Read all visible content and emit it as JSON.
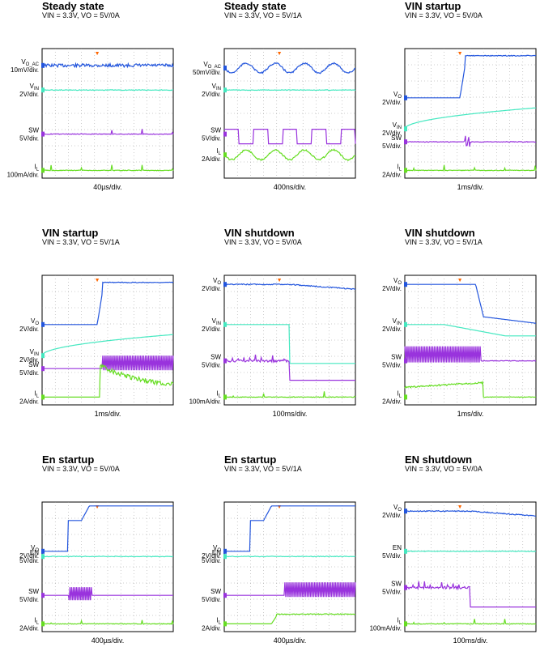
{
  "colors": {
    "vo": "#2255dd",
    "vin": "#44e8c0",
    "en": "#44e8c0",
    "sw": "#9933dd",
    "il": "#66dd22",
    "marker": "#ff6600",
    "grid": "#999999"
  },
  "chart_data": [
    {
      "type": "line",
      "title": "Steady state",
      "conditions": "VIN = 3.3V, VO = 5V/0A",
      "timebase": "40µs/div.",
      "channels": [
        {
          "name": "VO_AC",
          "label": "V",
          "sub": "O_AC",
          "scale": "10mV/div.",
          "color": "vo",
          "shape": "flat_noise",
          "level": 0.13
        },
        {
          "name": "VIN",
          "label": "V",
          "sub": "IN",
          "scale": "2V/div.",
          "color": "vin",
          "shape": "flat",
          "level": 0.32
        },
        {
          "name": "SW",
          "label": "SW",
          "sub": "",
          "scale": "5V/div.",
          "color": "sw",
          "shape": "flat_spikes",
          "level": 0.66
        },
        {
          "name": "IL",
          "label": "I",
          "sub": "L",
          "scale": "100mA/div.",
          "color": "il",
          "shape": "flat_spikes",
          "level": 0.94
        }
      ]
    },
    {
      "type": "line",
      "title": "Steady state",
      "conditions": "VIN = 3.3V, VO = 5V/1A",
      "timebase": "400ns/div.",
      "channels": [
        {
          "name": "VO_AC",
          "label": "V",
          "sub": "O_AC",
          "scale": "50mV/div.",
          "color": "vo",
          "shape": "wave",
          "level": 0.15
        },
        {
          "name": "VIN",
          "label": "V",
          "sub": "IN",
          "scale": "2V/div.",
          "color": "vin",
          "shape": "flat",
          "level": 0.32
        },
        {
          "name": "SW",
          "label": "SW",
          "sub": "",
          "scale": "5V/div.",
          "color": "sw",
          "shape": "square",
          "level": 0.66
        },
        {
          "name": "IL",
          "label": "I",
          "sub": "L",
          "scale": "2A/div.",
          "color": "il",
          "shape": "wave",
          "level": 0.82
        }
      ]
    },
    {
      "type": "line",
      "title": "VIN startup",
      "conditions": "VIN = 3.3V, VO = 5V/0A",
      "timebase": "1ms/div.",
      "channels": [
        {
          "name": "VO",
          "label": "V",
          "sub": "O",
          "scale": "2V/div.",
          "color": "vo",
          "shape": "step_up",
          "level": 0.38
        },
        {
          "name": "VIN",
          "label": "V",
          "sub": "IN",
          "scale": "2V/div.",
          "color": "vin",
          "shape": "ramp_up",
          "level": 0.62
        },
        {
          "name": "SW",
          "label": "SW",
          "sub": "",
          "scale": "5V/div.",
          "color": "sw",
          "shape": "burst_flat",
          "level": 0.72
        },
        {
          "name": "IL",
          "label": "I",
          "sub": "L",
          "scale": "2A/div.",
          "color": "il",
          "shape": "flat_spikes",
          "level": 0.94
        }
      ]
    },
    {
      "type": "line",
      "title": "VIN startup",
      "conditions": "VIN = 3.3V, VO = 5V/1A",
      "timebase": "1ms/div.",
      "channels": [
        {
          "name": "VO",
          "label": "V",
          "sub": "O",
          "scale": "2V/div.",
          "color": "vo",
          "shape": "step_up",
          "level": 0.38
        },
        {
          "name": "VIN",
          "label": "V",
          "sub": "IN",
          "scale": "2V/div.",
          "color": "vin",
          "shape": "ramp_up",
          "level": 0.62
        },
        {
          "name": "SW",
          "label": "SW",
          "sub": "",
          "scale": "5V/div.",
          "color": "sw",
          "shape": "burst_fill",
          "level": 0.72
        },
        {
          "name": "IL",
          "label": "I",
          "sub": "L",
          "scale": "2A/div.",
          "color": "il",
          "shape": "il_rise",
          "level": 0.94
        }
      ]
    },
    {
      "type": "line",
      "title": "VIN shutdown",
      "conditions": "VIN = 3.3V, VO = 5V/0A",
      "timebase": "100ms/div.",
      "channels": [
        {
          "name": "VO",
          "label": "V",
          "sub": "O",
          "scale": "2V/div.",
          "color": "vo",
          "shape": "flat_then_decline",
          "level": 0.07
        },
        {
          "name": "VIN",
          "label": "V",
          "sub": "IN",
          "scale": "2V/div.",
          "color": "vin",
          "shape": "drop_at_mid",
          "level": 0.38
        },
        {
          "name": "SW",
          "label": "SW",
          "sub": "",
          "scale": "5V/div.",
          "color": "sw",
          "shape": "noisy_then_flat",
          "level": 0.66
        },
        {
          "name": "IL",
          "label": "I",
          "sub": "L",
          "scale": "100mA/div.",
          "color": "il",
          "shape": "flat_spikes",
          "level": 0.94
        }
      ]
    },
    {
      "type": "line",
      "title": "VIN shutdown",
      "conditions": "VIN = 3.3V, VO = 5V/1A",
      "timebase": "1ms/div.",
      "channels": [
        {
          "name": "VO",
          "label": "V",
          "sub": "O",
          "scale": "2V/div.",
          "color": "vo",
          "shape": "step_down",
          "level": 0.07
        },
        {
          "name": "VIN",
          "label": "V",
          "sub": "IN",
          "scale": "2V/div.",
          "color": "vin",
          "shape": "ramp_down",
          "level": 0.38
        },
        {
          "name": "SW",
          "label": "SW",
          "sub": "",
          "scale": "5V/div.",
          "color": "sw",
          "shape": "fill_then_flat",
          "level": 0.66
        },
        {
          "name": "IL",
          "label": "I",
          "sub": "L",
          "scale": "2A/div.",
          "color": "il",
          "shape": "il_fall",
          "level": 0.94
        }
      ]
    },
    {
      "type": "line",
      "title": "En startup",
      "conditions": "VIN = 3.3V, VO = 5V/0A",
      "timebase": "400µs/div.",
      "channels": [
        {
          "name": "VO",
          "label": "V",
          "sub": "O",
          "scale": "2V/div.",
          "color": "vo",
          "shape": "en_step",
          "level": 0.38
        },
        {
          "name": "EN",
          "label": "EN",
          "sub": "",
          "scale": "5V/div.",
          "color": "en",
          "shape": "flat",
          "level": 0.42
        },
        {
          "name": "SW",
          "label": "SW",
          "sub": "",
          "scale": "5V/div.",
          "color": "sw",
          "shape": "en_sw",
          "level": 0.72
        },
        {
          "name": "IL",
          "label": "I",
          "sub": "L",
          "scale": "2A/div.",
          "color": "il",
          "shape": "flat_spikes",
          "level": 0.94
        }
      ]
    },
    {
      "type": "line",
      "title": "En startup",
      "conditions": "VIN = 3.3V, VO = 5V/1A",
      "timebase": "400µs/div.",
      "channels": [
        {
          "name": "VO",
          "label": "V",
          "sub": "O",
          "scale": "2V/div.",
          "color": "vo",
          "shape": "en_step",
          "level": 0.38
        },
        {
          "name": "EN",
          "label": "EN",
          "sub": "",
          "scale": "5V/div.",
          "color": "en",
          "shape": "flat",
          "level": 0.42
        },
        {
          "name": "SW",
          "label": "SW",
          "sub": "",
          "scale": "5V/div.",
          "color": "sw",
          "shape": "burst_fill",
          "level": 0.72
        },
        {
          "name": "IL",
          "label": "I",
          "sub": "L",
          "scale": "2A/div.",
          "color": "il",
          "shape": "il_step",
          "level": 0.94
        }
      ]
    },
    {
      "type": "line",
      "title": "EN shutdown",
      "conditions": "VIN = 3.3V, VO = 5V/0A",
      "timebase": "100ms/div.",
      "channels": [
        {
          "name": "VO",
          "label": "V",
          "sub": "O",
          "scale": "2V/div.",
          "color": "vo",
          "shape": "flat_then_decline",
          "level": 0.07
        },
        {
          "name": "EN",
          "label": "EN",
          "sub": "",
          "scale": "5V/div.",
          "color": "en",
          "shape": "flat",
          "level": 0.38
        },
        {
          "name": "SW",
          "label": "SW",
          "sub": "",
          "scale": "5V/div.",
          "color": "sw",
          "shape": "noisy_then_flat",
          "level": 0.66
        },
        {
          "name": "IL",
          "label": "I",
          "sub": "L",
          "scale": "100mA/div.",
          "color": "il",
          "shape": "flat_spikes",
          "level": 0.94
        }
      ]
    }
  ]
}
